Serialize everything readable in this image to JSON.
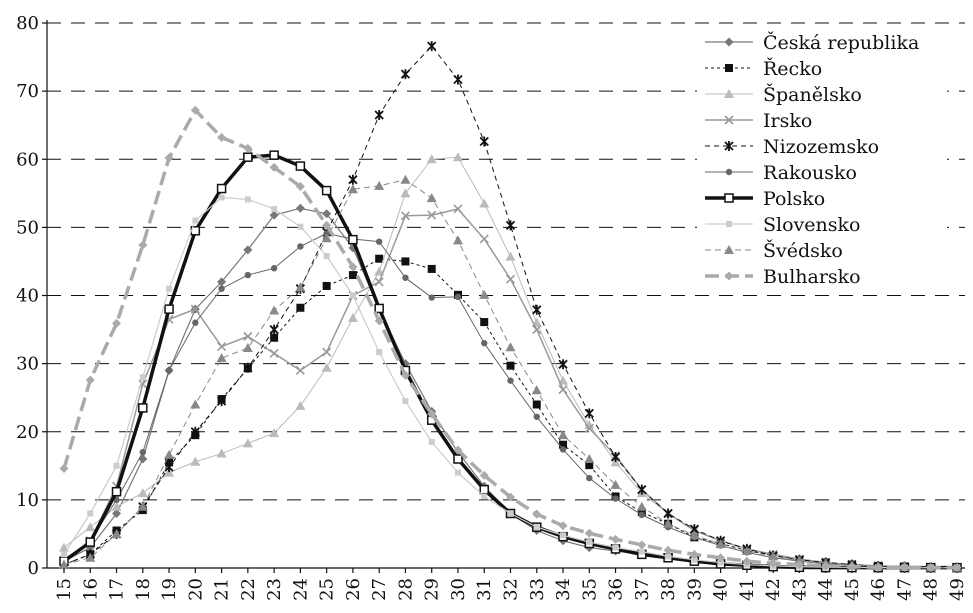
{
  "chart_data": {
    "type": "line",
    "title": "",
    "xlabel": "",
    "ylabel": "",
    "x": [
      15,
      16,
      17,
      18,
      19,
      20,
      21,
      22,
      23,
      24,
      25,
      26,
      27,
      28,
      29,
      30,
      31,
      32,
      33,
      34,
      35,
      36,
      37,
      38,
      39,
      40,
      41,
      42,
      43,
      44,
      45,
      46,
      47,
      48,
      49
    ],
    "ylim": [
      0,
      80
    ],
    "yticks": [
      0,
      10,
      20,
      30,
      40,
      50,
      60,
      70,
      80
    ],
    "grid": "horizontal-dashed",
    "legend": "top-right",
    "series": [
      {
        "name": "Česká republika",
        "color": "#777777",
        "marker": "diamond",
        "dash": "",
        "width": 1.2,
        "values": [
          1,
          3,
          8,
          16,
          29,
          38,
          42,
          46.7,
          51.8,
          52.8,
          52,
          47,
          38,
          30,
          23,
          17,
          12,
          8,
          5.5,
          4,
          3,
          2.5,
          2,
          1.5,
          1,
          0.8,
          0.5,
          0.3,
          0.2,
          0.1,
          0.1,
          0.05,
          0.05,
          0.05,
          0.05
        ]
      },
      {
        "name": "Řecko",
        "color": "#111111",
        "marker": "square",
        "dash": "3,3",
        "width": 1,
        "values": [
          0.5,
          2,
          5.5,
          8.5,
          15.5,
          19.5,
          24.8,
          29.3,
          33.8,
          38.2,
          41.4,
          43,
          45.4,
          45,
          43.9,
          40.1,
          36.1,
          29.7,
          24,
          18.1,
          15.1,
          10.5,
          8.2,
          6.5,
          4.5,
          3.6,
          2.6,
          1.8,
          1.2,
          0.8,
          0.5,
          0.3,
          0.2,
          0.1,
          0.1
        ]
      },
      {
        "name": "Španělsko",
        "color": "#bbbbbb",
        "marker": "triangle",
        "dash": "",
        "width": 1,
        "values": [
          3,
          6,
          9,
          11,
          14,
          15.6,
          16.8,
          18.3,
          19.8,
          23.8,
          29.4,
          36.7,
          43.5,
          55,
          60,
          60.3,
          53.5,
          45.7,
          36,
          27.5,
          21,
          15.5,
          11,
          8,
          5.5,
          4,
          2.8,
          2,
          1.3,
          0.8,
          0.5,
          0.3,
          0.2,
          0.1,
          0.05
        ]
      },
      {
        "name": "Irsko",
        "color": "#999999",
        "marker": "x",
        "dash": "",
        "width": 1.5,
        "values": [
          1,
          4,
          12,
          27,
          36.5,
          38,
          32.5,
          34,
          31.5,
          29,
          31.7,
          40,
          42,
          51.7,
          51.8,
          52.7,
          48.3,
          42.4,
          35,
          26.2,
          20.5,
          16.5,
          11.5,
          8,
          5.5,
          4,
          2.8,
          2,
          1.3,
          0.8,
          0.5,
          0.3,
          0.2,
          0.1,
          0.05
        ]
      },
      {
        "name": "Nizozemsko",
        "color": "#111111",
        "marker": "star",
        "dash": "5,4",
        "width": 1,
        "values": [
          0.5,
          2,
          5,
          9,
          14.8,
          20,
          24.5,
          29.4,
          35,
          41,
          49.3,
          57,
          66.5,
          72.5,
          76.6,
          71.7,
          62.6,
          50.3,
          37.9,
          29.9,
          22.7,
          16.3,
          11.5,
          8,
          5.7,
          4,
          2.8,
          1.8,
          1.2,
          0.8,
          0.5,
          0.3,
          0.2,
          0.1,
          0.05
        ]
      },
      {
        "name": "Rakousko",
        "color": "#666666",
        "marker": "circle",
        "dash": "",
        "width": 1,
        "values": [
          1,
          4,
          10,
          17,
          29,
          36,
          41,
          43,
          44,
          47.2,
          49.1,
          48.3,
          47.9,
          42.6,
          39.7,
          39.8,
          33,
          27.5,
          22.2,
          17.4,
          13.2,
          10.2,
          7.8,
          6,
          4.5,
          3.3,
          2.3,
          1.5,
          1,
          0.6,
          0.4,
          0.3,
          0.2,
          0.1,
          0.05
        ]
      },
      {
        "name": "Polsko",
        "color": "#111111",
        "marker": "hollow-square",
        "dash": "",
        "width": 3.5,
        "values": [
          1,
          3.8,
          11.2,
          23.5,
          38,
          49.5,
          55.7,
          60.3,
          60.6,
          59,
          55.4,
          48.2,
          38.1,
          29,
          21.7,
          16,
          11.5,
          8,
          6,
          4.6,
          3.6,
          2.8,
          2,
          1.5,
          1,
          0.6,
          0.4,
          0.2,
          0.1,
          0.05,
          0.05,
          0.05,
          0.05,
          0.05,
          0.05
        ]
      },
      {
        "name": "Slovensko",
        "color": "#cccccc",
        "marker": "square-small",
        "dash": "",
        "width": 1.2,
        "values": [
          2,
          8,
          15,
          28,
          41,
          51,
          54.4,
          54.1,
          52.7,
          50.1,
          45.8,
          40,
          31.7,
          24.5,
          18.5,
          14,
          10.5,
          8,
          6,
          4.8,
          3.8,
          3,
          2.4,
          1.7,
          1.2,
          0.8,
          0.5,
          0.3,
          0.2,
          0.1,
          0.1,
          0.05,
          0.05,
          0.05,
          0.05
        ]
      },
      {
        "name": "Švédsko",
        "color": "#888888",
        "marker": "triangle",
        "dash": "6,4",
        "width": 1,
        "values": [
          0.5,
          1.5,
          5,
          9,
          16.6,
          24,
          30.8,
          32.3,
          37.8,
          41.2,
          48.4,
          55.6,
          56.1,
          57,
          54.3,
          48.1,
          40.1,
          32.4,
          26.1,
          19.5,
          16,
          12.2,
          9,
          6.5,
          4.8,
          3.5,
          2.5,
          1.7,
          1.1,
          0.7,
          0.4,
          0.3,
          0.2,
          0.1,
          0.05
        ]
      },
      {
        "name": "Bulharsko",
        "color": "#aaaaaa",
        "marker": "diamond",
        "dash": "14,6",
        "width": 3.5,
        "values": [
          14.6,
          27.6,
          35.9,
          47.4,
          60.2,
          67.2,
          63.2,
          61.6,
          58.8,
          56,
          50.3,
          44.2,
          36.3,
          28.3,
          22.6,
          17.3,
          13.6,
          10.4,
          7.9,
          6.2,
          5.1,
          4.2,
          3.4,
          2.6,
          2,
          1.5,
          1,
          0.7,
          0.5,
          0.3,
          0.2,
          0.1,
          0.1,
          0.05,
          0.05
        ]
      }
    ]
  }
}
